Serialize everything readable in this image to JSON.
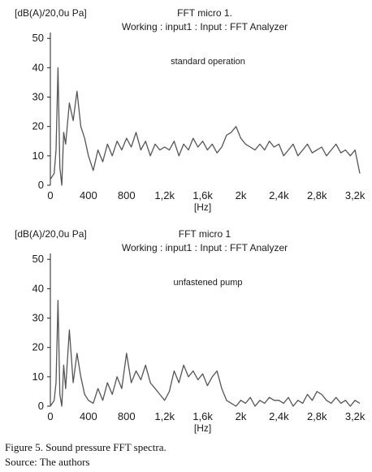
{
  "caption": "Figure 5. Sound pressure FFT spectra.",
  "source": "Source: The authors",
  "chart_data": [
    {
      "type": "line",
      "unit_label": "[dB(A)/20,0u Pa]",
      "title": "FFT micro 1.",
      "subtitle": "Working : input1 : Input : FFT Analyzer",
      "annotation": "standard operation",
      "xlabel": "[Hz]",
      "xlim": [
        0,
        3250
      ],
      "ylim": [
        0,
        52
      ],
      "x_ticks": [
        0,
        400,
        800,
        1200,
        1600,
        2000,
        2400,
        2800,
        3200
      ],
      "x_tick_labels": [
        "0",
        "400",
        "800",
        "1,2k",
        "1,6k",
        "2k",
        "2,4k",
        "2,8k",
        "3,2k"
      ],
      "y_ticks": [
        0,
        10,
        20,
        30,
        40,
        50
      ],
      "y_tick_labels": [
        "0",
        "10",
        "20",
        "30",
        "40",
        "50"
      ],
      "grid": false,
      "color": "#555555",
      "series": [
        {
          "x": [
            0,
            40,
            60,
            80,
            100,
            120,
            140,
            160,
            200,
            240,
            280,
            320,
            360,
            400,
            450,
            500,
            550,
            600,
            650,
            700,
            750,
            800,
            850,
            900,
            950,
            1000,
            1050,
            1100,
            1150,
            1200,
            1250,
            1300,
            1350,
            1400,
            1450,
            1500,
            1550,
            1600,
            1650,
            1700,
            1750,
            1800,
            1850,
            1900,
            1950,
            2000,
            2050,
            2100,
            2150,
            2200,
            2250,
            2300,
            2350,
            2400,
            2450,
            2500,
            2550,
            2600,
            2650,
            2700,
            2750,
            2800,
            2850,
            2900,
            2950,
            3000,
            3050,
            3100,
            3150,
            3200,
            3250
          ],
          "y": [
            2,
            4,
            12,
            40,
            6,
            0,
            18,
            14,
            28,
            22,
            32,
            20,
            16,
            10,
            5,
            12,
            8,
            14,
            10,
            15,
            12,
            16,
            13,
            18,
            12,
            15,
            10,
            14,
            12,
            13,
            12,
            15,
            10,
            14,
            12,
            16,
            13,
            15,
            12,
            14,
            11,
            13,
            17,
            18,
            20,
            16,
            14,
            13,
            12,
            14,
            12,
            15,
            13,
            14,
            10,
            12,
            14,
            10,
            12,
            14,
            11,
            12,
            13,
            10,
            12,
            14,
            11,
            12,
            10,
            12,
            4
          ]
        }
      ]
    },
    {
      "type": "line",
      "unit_label": "[dB(A)/20,0u Pa]",
      "title": "FFT micro 1",
      "subtitle": "Working : input1 : Input : FFT Analyzer",
      "annotation": "unfastened pump",
      "xlabel": "[Hz]",
      "xlim": [
        0,
        3250
      ],
      "ylim": [
        0,
        52
      ],
      "x_ticks": [
        0,
        400,
        800,
        1200,
        1600,
        2000,
        2400,
        2800,
        3200
      ],
      "x_tick_labels": [
        "0",
        "400",
        "800",
        "1,2k",
        "1,6k",
        "2k",
        "2,4k",
        "2,8k",
        "3,2k"
      ],
      "y_ticks": [
        0,
        10,
        20,
        30,
        40,
        50
      ],
      "y_tick_labels": [
        "0",
        "10",
        "20",
        "30",
        "40",
        "50"
      ],
      "grid": false,
      "color": "#555555",
      "series": [
        {
          "x": [
            0,
            40,
            60,
            80,
            100,
            120,
            140,
            160,
            200,
            240,
            280,
            320,
            360,
            400,
            450,
            500,
            550,
            600,
            650,
            700,
            750,
            800,
            850,
            900,
            950,
            1000,
            1050,
            1100,
            1150,
            1200,
            1250,
            1300,
            1350,
            1400,
            1450,
            1500,
            1550,
            1600,
            1650,
            1700,
            1750,
            1800,
            1850,
            1900,
            1950,
            2000,
            2050,
            2100,
            2150,
            2200,
            2250,
            2300,
            2350,
            2400,
            2450,
            2500,
            2550,
            2600,
            2650,
            2700,
            2750,
            2800,
            2850,
            2900,
            2950,
            3000,
            3050,
            3100,
            3150,
            3200,
            3250
          ],
          "y": [
            0,
            2,
            8,
            36,
            4,
            0,
            14,
            6,
            26,
            8,
            18,
            10,
            4,
            2,
            1,
            6,
            2,
            8,
            4,
            10,
            6,
            18,
            8,
            12,
            9,
            14,
            8,
            6,
            4,
            2,
            5,
            12,
            8,
            14,
            10,
            12,
            9,
            11,
            7,
            10,
            12,
            6,
            2,
            1,
            0,
            2,
            1,
            3,
            0,
            2,
            1,
            3,
            2,
            2,
            1,
            3,
            0,
            2,
            1,
            4,
            2,
            5,
            4,
            2,
            1,
            3,
            1,
            2,
            0,
            2,
            1
          ]
        }
      ]
    }
  ]
}
